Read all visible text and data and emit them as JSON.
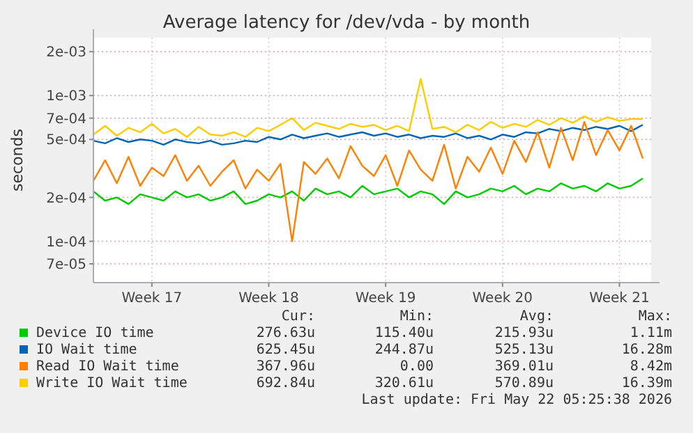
{
  "chart_data": {
    "type": "line",
    "title": "Average latency for /dev/vda - by month",
    "ylabel": "seconds",
    "log": "y",
    "grid": true,
    "legend": "bottom",
    "marker": "none",
    "line_style": "solid",
    "categories": [
      null,
      null,
      null,
      null,
      null,
      "Week 17",
      null,
      null,
      null,
      null,
      null,
      null,
      null,
      null,
      null,
      "Week 18",
      null,
      null,
      null,
      null,
      null,
      null,
      null,
      null,
      null,
      "Week 19",
      null,
      null,
      null,
      null,
      null,
      null,
      null,
      null,
      null,
      "Week 20",
      null,
      null,
      null,
      null,
      null,
      null,
      null,
      null,
      null,
      "Week 21",
      null,
      null
    ],
    "ylim": [
      5.2e-05,
      0.0025
    ],
    "yticks": [
      {
        "value": 7e-05,
        "label": "7e-05"
      },
      {
        "value": 0.0001,
        "label": "1e-04"
      },
      {
        "value": 0.0002,
        "label": "2e-04"
      },
      {
        "value": 0.0005,
        "label": "5e-04"
      },
      {
        "value": 0.0007,
        "label": "7e-04"
      },
      {
        "value": 0.001,
        "label": "1e-03"
      },
      {
        "value": 0.002,
        "label": "2e-03"
      }
    ],
    "series": [
      {
        "name": "Device IO time",
        "color": "#00cc00",
        "values": [
          0.00022,
          0.00019,
          0.0002,
          0.00018,
          0.00021,
          0.0002,
          0.00019,
          0.00022,
          0.0002,
          0.00021,
          0.00019,
          0.0002,
          0.00022,
          0.00018,
          0.00019,
          0.00021,
          0.0002,
          0.00022,
          0.00019,
          0.00023,
          0.00021,
          0.00022,
          0.0002,
          0.00024,
          0.00021,
          0.00022,
          0.00023,
          0.0002,
          0.00022,
          0.00021,
          0.00018,
          0.00022,
          0.0002,
          0.00021,
          0.00023,
          0.00022,
          0.00024,
          0.00021,
          0.00023,
          0.00022,
          0.00025,
          0.00023,
          0.00024,
          0.00022,
          0.00025,
          0.00023,
          0.00024,
          0.00027
        ]
      },
      {
        "name": "IO Wait time",
        "color": "#0066b3",
        "values": [
          0.00049,
          0.00047,
          0.00051,
          0.00048,
          0.0005,
          0.00049,
          0.00046,
          0.0005,
          0.00048,
          0.00047,
          0.00049,
          0.00046,
          0.00047,
          0.00049,
          0.00048,
          0.00052,
          0.0005,
          0.00054,
          0.00051,
          0.00053,
          0.00055,
          0.00052,
          0.00054,
          0.00056,
          0.00053,
          0.00055,
          0.00052,
          0.00054,
          0.00051,
          0.00053,
          0.00052,
          0.00055,
          0.00051,
          0.00053,
          0.0005,
          0.00054,
          0.00052,
          0.00056,
          0.00055,
          0.00059,
          0.00057,
          0.0006,
          0.00058,
          0.00061,
          0.00059,
          0.00062,
          0.00057,
          0.00063
        ]
      },
      {
        "name": "Read IO Wait time",
        "color": "#ff8000",
        "values": [
          0.00026,
          0.00036,
          0.00025,
          0.00038,
          0.00024,
          0.00032,
          0.00028,
          0.00039,
          0.00026,
          0.00033,
          0.00024,
          0.0003,
          0.00036,
          0.00023,
          0.00031,
          0.00026,
          0.00034,
          0.0001,
          0.00035,
          0.00029,
          0.00037,
          0.00027,
          0.00045,
          0.00033,
          0.00028,
          0.00039,
          0.00024,
          0.00042,
          0.00031,
          0.00026,
          0.00046,
          0.00023,
          0.00038,
          0.0003,
          0.00044,
          0.00029,
          0.00049,
          0.00035,
          0.00056,
          0.00032,
          0.0006,
          0.00036,
          0.00066,
          0.00039,
          0.00058,
          0.00042,
          0.00062,
          0.00037
        ]
      },
      {
        "name": "Write IO Wait time",
        "color": "#ffcc00",
        "values": [
          0.00054,
          0.00062,
          0.00053,
          0.0006,
          0.00056,
          0.00064,
          0.00055,
          0.00059,
          0.00052,
          0.00061,
          0.00054,
          0.00053,
          0.00056,
          0.00052,
          0.0006,
          0.00057,
          0.00063,
          0.0007,
          0.00058,
          0.00065,
          0.00062,
          0.00059,
          0.00064,
          0.00061,
          0.00063,
          0.00058,
          0.00062,
          0.00057,
          0.0013,
          0.00059,
          0.00061,
          0.00056,
          0.00063,
          0.00058,
          0.00066,
          0.0006,
          0.00064,
          0.00061,
          0.00068,
          0.00063,
          0.0007,
          0.00065,
          0.00072,
          0.00066,
          0.00071,
          0.00067,
          0.00069,
          0.00069
        ]
      }
    ],
    "annotations": [
      "Cur:",
      "Min:",
      "Avg:",
      "Max:",
      "276.63u",
      "115.40u",
      "215.93u",
      "1.11m",
      "625.45u",
      "244.87u",
      "525.13u",
      "16.28m",
      "367.96u",
      "0.00",
      "369.01u",
      "8.42m",
      "692.84u",
      "320.61u",
      "570.89u",
      "16.39m",
      "Last update: Fri May 22 05:25:38 2026"
    ]
  }
}
